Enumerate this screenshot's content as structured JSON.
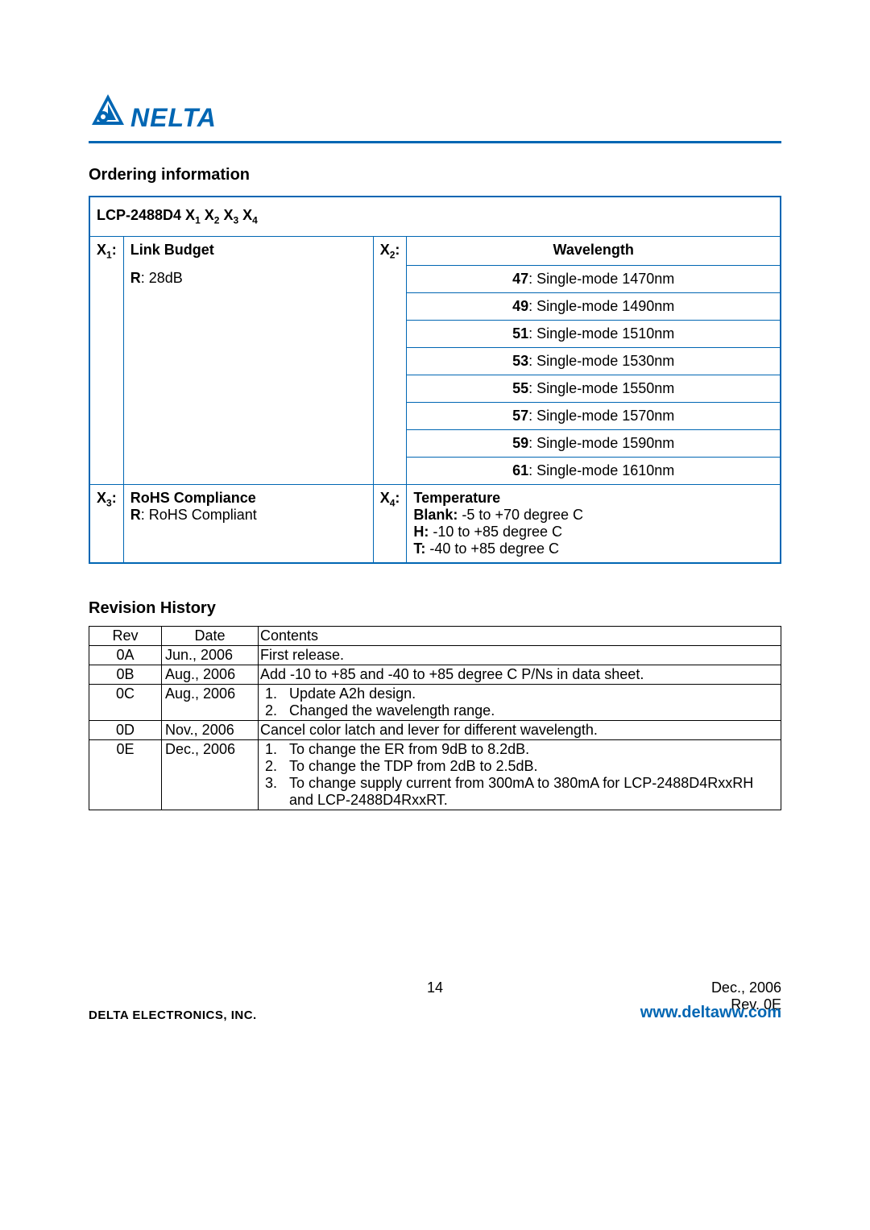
{
  "brand": {
    "name": "NELTA",
    "brand_color": "#0066b3"
  },
  "ordering": {
    "title": "Ordering information",
    "part_prefix": "LCP-2488D4 X",
    "x1": {
      "label": "X",
      "sub": "1",
      "header": "Link Budget",
      "value_bold": "R",
      "value_rest": ": 28dB"
    },
    "x2": {
      "label": "X",
      "sub": "2",
      "header": "Wavelength",
      "rows": [
        {
          "b": "47",
          "r": ": Single-mode 1470nm"
        },
        {
          "b": "49",
          "r": ": Single-mode 1490nm"
        },
        {
          "b": "51",
          "r": ": Single-mode 1510nm"
        },
        {
          "b": "53",
          "r": ": Single-mode 1530nm"
        },
        {
          "b": "55",
          "r": ": Single-mode 1550nm"
        },
        {
          "b": "57",
          "r": ": Single-mode 1570nm"
        },
        {
          "b": "59",
          "r": ": Single-mode 1590nm"
        },
        {
          "b": "61",
          "r": ": Single-mode 1610nm"
        }
      ]
    },
    "x3": {
      "label": "X",
      "sub": "3",
      "header": "RoHS Compliance",
      "value_bold": "R",
      "value_rest": ": RoHS Compliant"
    },
    "x4": {
      "label": "X",
      "sub": "4",
      "header": "Temperature",
      "lines": [
        {
          "b": "Blank:",
          "r": " -5 to +70 degree C"
        },
        {
          "b": "H:",
          "r": " -10 to +85 degree C"
        },
        {
          "b": "T:",
          "r": " -40 to +85 degree C"
        }
      ]
    }
  },
  "revision": {
    "title": "Revision History",
    "columns": [
      "Rev",
      "Date",
      "Contents"
    ],
    "rows": [
      {
        "rev": "0A",
        "date": "Jun., 2006",
        "contents_plain": "First release."
      },
      {
        "rev": "0B",
        "date": "Aug., 2006",
        "contents_plain": "Add -10 to +85 and -40 to +85 degree C P/Ns in data sheet."
      },
      {
        "rev": "0C",
        "date": "Aug., 2006",
        "contents_list": [
          "Update A2h design.",
          "Changed the wavelength range."
        ]
      },
      {
        "rev": "0D",
        "date": "Nov., 2006",
        "contents_plain": "Cancel color latch and lever for different wavelength."
      },
      {
        "rev": "0E",
        "date": "Dec., 2006",
        "contents_list": [
          "To change the ER from 9dB to 8.2dB.",
          "To change the TDP from 2dB to 2.5dB.",
          "To change supply current from 300mA to 380mA for LCP-2488D4RxxRH and LCP-2488D4RxxRT."
        ]
      }
    ]
  },
  "footer": {
    "page": "14",
    "date": "Dec.,  2006",
    "rev": "Rev. 0E",
    "company": "DELTA ELECTRONICS, INC.",
    "url": "www.deltaww.com"
  }
}
